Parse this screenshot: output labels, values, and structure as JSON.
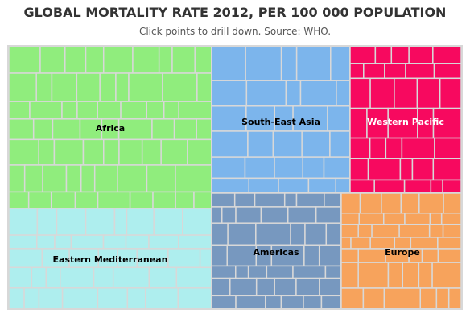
{
  "title": "GLOBAL MORTALITY RATE 2012, PER 100 000 POPULATION",
  "subtitle": "Click points to drill down. Source: WHO.",
  "chart_data": {
    "type": "treemap",
    "regions": [
      {
        "name": "Africa",
        "color": "#90ed7d"
      },
      {
        "name": "Eastern Mediterranean",
        "color": "#aeeeee"
      },
      {
        "name": "South-East Asia",
        "color": "#7cb5ec"
      },
      {
        "name": "Western Pacific",
        "color": "#f7095f",
        "label_color": "#ffffff"
      },
      {
        "name": "Americas",
        "color": "#7798bf"
      },
      {
        "name": "Europe",
        "color": "#f7a35c"
      }
    ]
  }
}
